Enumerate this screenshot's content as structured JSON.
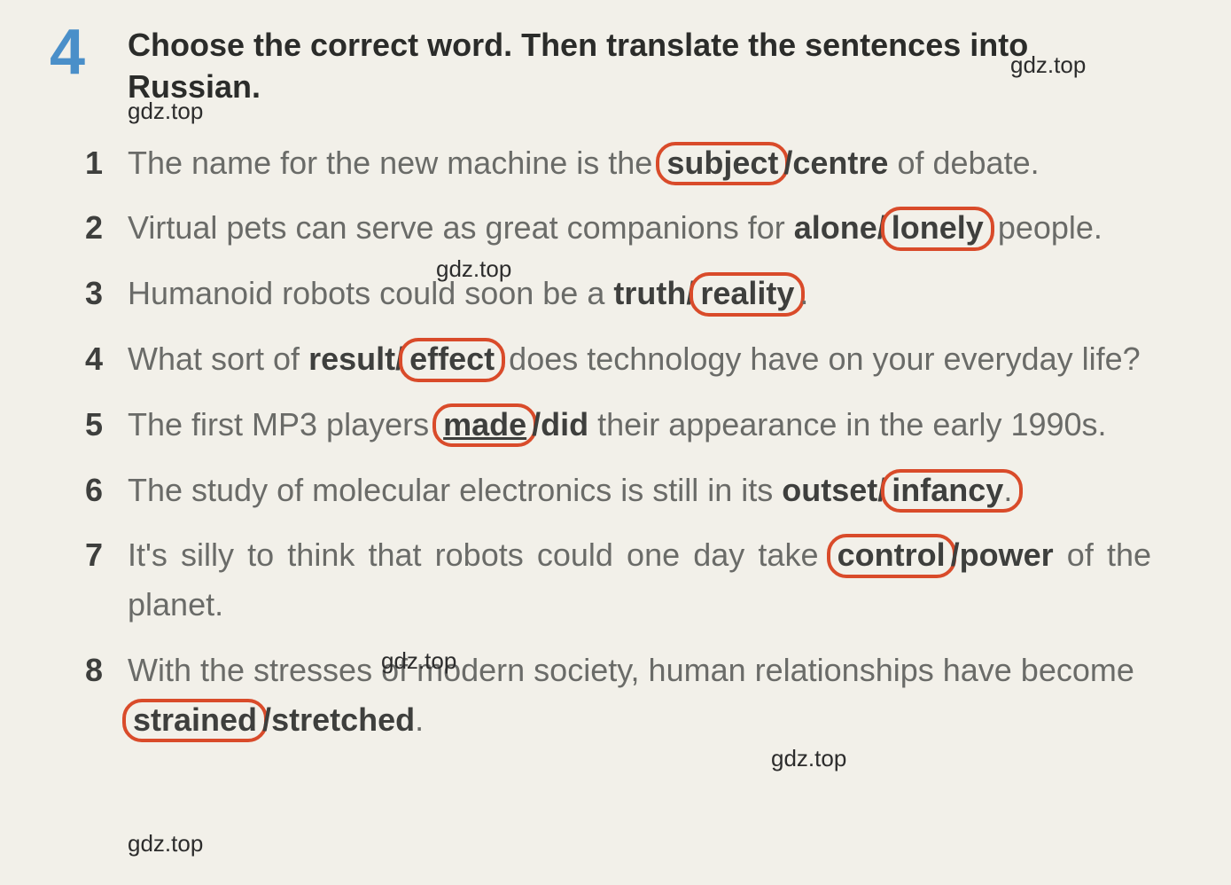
{
  "exercise": {
    "number": "4",
    "instruction": "Choose the correct word. Then translate the sentences into Russian."
  },
  "watermarks": {
    "w1": "gdz.top",
    "w2": "gdz.top",
    "w3": "gdz.top",
    "w4": "gdz.top",
    "w5": "gdz.top",
    "w6": "gdz.top"
  },
  "questions": [
    {
      "num": "1",
      "pre": "The name for the new machine is the ",
      "opt1": "subject",
      "sep": "/",
      "opt2": "centre",
      "post": " of debate.",
      "circled": "opt1",
      "justify": true
    },
    {
      "num": "2",
      "pre": "Virtual pets can serve as great companions for ",
      "opt1": "alone",
      "sep": "/",
      "opt2": "lonely",
      "post": " people.",
      "circled": "opt2",
      "justify": true
    },
    {
      "num": "3",
      "pre": "Humanoid robots could soon be a ",
      "opt1": "truth",
      "sep": "/",
      "opt2": "reality",
      "post": ".",
      "circled": "opt2",
      "justify": false
    },
    {
      "num": "4",
      "pre": "What sort of ",
      "opt1": "result",
      "sep": "/",
      "opt2": "effect",
      "post": " does technology have on your everyday life?",
      "circled": "opt2",
      "justify": true
    },
    {
      "num": "5",
      "pre": "The first MP3 players ",
      "opt1": "made",
      "sep": "/",
      "opt2": "did",
      "post": " their appearance in the early 1990s.",
      "circled": "opt1",
      "justify": true,
      "underline1": true
    },
    {
      "num": "6",
      "pre": "The study of molecular electronics is still in its ",
      "opt1": "outset",
      "sep": "/",
      "opt2": "infancy",
      "post": ".",
      "circled": "opt2",
      "justify": true,
      "circledPunct": "."
    },
    {
      "num": "7",
      "pre": "It's silly to think that robots could one day take ",
      "opt1": "control",
      "sep": "/",
      "opt2": "power",
      "post": " of the planet.",
      "circled": "opt1",
      "justify": true
    },
    {
      "num": "8",
      "pre": "With the stresses of modern society, human relationships have become ",
      "opt1": "strained",
      "sep": "/",
      "opt2": "stretched",
      "post": ".",
      "circled": "opt1",
      "justify": false
    }
  ],
  "styling": {
    "page_bg": "#f2f0e9",
    "text_color": "#6a6b68",
    "bold_color": "#3e3f3d",
    "num_color": "#4a8fc9",
    "circle_color": "#d94b2a",
    "base_fontsize": 36,
    "num_fontsize": 72,
    "circle_border_width": 4,
    "circle_radius": 22
  }
}
